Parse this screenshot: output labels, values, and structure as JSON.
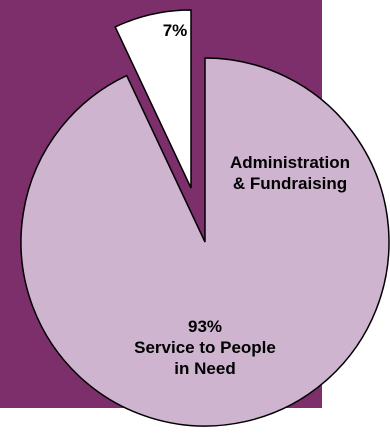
{
  "chart_data": {
    "type": "pie",
    "slices": [
      {
        "label_lines": [
          "Administration",
          "& Fundraising"
        ],
        "percent_label": "7%",
        "value": 7,
        "color": "#ffffff",
        "exploded": true
      },
      {
        "label_lines": [
          "Service to People",
          "in Need"
        ],
        "percent_label": "93%",
        "value": 93,
        "color": "#ceb4cf",
        "exploded": false
      }
    ],
    "background_color": "#7d2f6c",
    "outline_color": "#000000"
  }
}
